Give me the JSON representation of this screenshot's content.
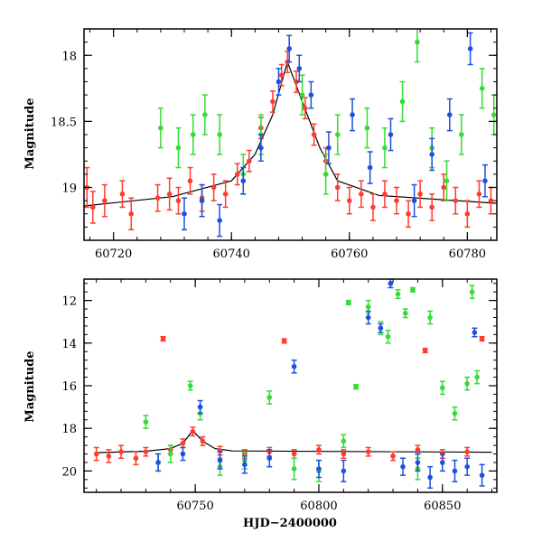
{
  "chart_data": [
    {
      "type": "scatter",
      "panel": "top",
      "xlabel": "",
      "ylabel": "Magnitude",
      "xlim": [
        60715,
        60785
      ],
      "ylim": [
        19.4,
        17.8
      ],
      "y_inverted": true,
      "xticks": [
        60720,
        60740,
        60760,
        60780
      ],
      "yticks": [
        18,
        18.5,
        19
      ],
      "colors": {
        "red": "#ff3b30",
        "green": "#33dd33",
        "blue": "#1f4fe0",
        "model": "#000000"
      },
      "model_curve": {
        "x": [
          60715,
          60730,
          60740,
          60744,
          60747,
          60749.5,
          60752,
          60755,
          60758,
          60765,
          60785
        ],
        "y": [
          19.14,
          19.07,
          18.95,
          18.75,
          18.45,
          18.05,
          18.35,
          18.7,
          18.95,
          19.06,
          19.12
        ]
      },
      "series": [
        {
          "color": "red",
          "points": [
            [
              60715.5,
              19.0,
              0.15
            ],
            [
              60716.5,
              19.15,
              0.12
            ],
            [
              60718.5,
              19.1,
              0.12
            ],
            [
              60721.5,
              19.05,
              0.1
            ],
            [
              60723.0,
              19.2,
              0.12
            ],
            [
              60727.5,
              19.08,
              0.1
            ],
            [
              60729.5,
              19.05,
              0.12
            ],
            [
              60731.0,
              19.1,
              0.1
            ],
            [
              60733.0,
              18.95,
              0.1
            ],
            [
              60735.0,
              19.08,
              0.1
            ],
            [
              60737.0,
              19.0,
              0.1
            ],
            [
              60739.0,
              19.05,
              0.1
            ],
            [
              60741.0,
              18.9,
              0.08
            ],
            [
              60743.0,
              18.8,
              0.08
            ],
            [
              60745.0,
              18.55,
              0.08
            ],
            [
              60747.0,
              18.35,
              0.08
            ],
            [
              60748.5,
              18.15,
              0.08
            ],
            [
              60749.5,
              18.05,
              0.08
            ],
            [
              60751.0,
              18.2,
              0.08
            ],
            [
              60752.5,
              18.4,
              0.08
            ],
            [
              60754.0,
              18.6,
              0.08
            ],
            [
              60756.0,
              18.8,
              0.1
            ],
            [
              60758.0,
              19.0,
              0.1
            ],
            [
              60760.0,
              19.1,
              0.1
            ],
            [
              60762.0,
              19.05,
              0.1
            ],
            [
              60764.0,
              19.15,
              0.1
            ],
            [
              60766.0,
              19.05,
              0.1
            ],
            [
              60768.0,
              19.1,
              0.1
            ],
            [
              60770.0,
              19.2,
              0.1
            ],
            [
              60772.0,
              19.05,
              0.1
            ],
            [
              60774.0,
              19.15,
              0.1
            ],
            [
              60776.0,
              19.0,
              0.1
            ],
            [
              60778.0,
              19.1,
              0.1
            ],
            [
              60780.0,
              19.2,
              0.1
            ],
            [
              60782.0,
              19.05,
              0.1
            ],
            [
              60784.0,
              19.1,
              0.1
            ]
          ]
        },
        {
          "color": "green",
          "points": [
            [
              60728.0,
              18.55,
              0.15
            ],
            [
              60731.0,
              18.7,
              0.15
            ],
            [
              60733.5,
              18.6,
              0.15
            ],
            [
              60735.5,
              18.45,
              0.15
            ],
            [
              60738.0,
              18.6,
              0.15
            ],
            [
              60742.0,
              18.9,
              0.15
            ],
            [
              60745.0,
              18.6,
              0.15
            ],
            [
              60752.0,
              18.3,
              0.15
            ],
            [
              60756.0,
              18.9,
              0.15
            ],
            [
              60758.0,
              18.6,
              0.15
            ],
            [
              60763.0,
              18.55,
              0.15
            ],
            [
              60766.0,
              18.7,
              0.15
            ],
            [
              60769.0,
              18.35,
              0.15
            ],
            [
              60771.5,
              17.9,
              0.15
            ],
            [
              60774.0,
              18.7,
              0.15
            ],
            [
              60776.5,
              18.95,
              0.15
            ],
            [
              60779.0,
              18.6,
              0.15
            ],
            [
              60782.5,
              18.25,
              0.15
            ],
            [
              60784.5,
              18.45,
              0.15
            ]
          ]
        },
        {
          "color": "blue",
          "points": [
            [
              60732.0,
              19.2,
              0.12
            ],
            [
              60735.0,
              19.1,
              0.12
            ],
            [
              60738.0,
              19.25,
              0.12
            ],
            [
              60742.0,
              18.95,
              0.1
            ],
            [
              60745.0,
              18.7,
              0.1
            ],
            [
              60748.0,
              18.2,
              0.1
            ],
            [
              60749.8,
              17.95,
              0.1
            ],
            [
              60751.5,
              18.1,
              0.1
            ],
            [
              60753.5,
              18.3,
              0.1
            ],
            [
              60756.5,
              18.7,
              0.12
            ],
            [
              60760.5,
              18.45,
              0.12
            ],
            [
              60763.5,
              18.85,
              0.12
            ],
            [
              60767.0,
              18.6,
              0.12
            ],
            [
              60771.0,
              19.1,
              0.12
            ],
            [
              60774.0,
              18.75,
              0.12
            ],
            [
              60777.0,
              18.45,
              0.12
            ],
            [
              60780.5,
              17.95,
              0.12
            ],
            [
              60783.0,
              18.95,
              0.12
            ]
          ]
        }
      ]
    },
    {
      "type": "scatter",
      "panel": "bottom",
      "xlabel": "HJD−2400000",
      "ylabel": "Magnitude",
      "xlim": [
        60705,
        60872
      ],
      "ylim": [
        21,
        11
      ],
      "y_inverted": true,
      "xticks": [
        60750,
        60800,
        60850
      ],
      "yticks": [
        12,
        14,
        16,
        18,
        20
      ],
      "colors": {
        "red": "#ff3b30",
        "green": "#33dd33",
        "blue": "#1f4fe0",
        "model": "#000000"
      },
      "model_curve": {
        "x": [
          60710,
          60730,
          60740,
          60745,
          60749,
          60753,
          60758,
          60765,
          60870
        ],
        "y": [
          19.14,
          19.07,
          18.95,
          18.7,
          18.1,
          18.6,
          18.95,
          19.06,
          19.12
        ]
      },
      "series": [
        {
          "color": "red",
          "points": [
            [
              60710,
              19.2,
              0.3
            ],
            [
              60715,
              19.3,
              0.3
            ],
            [
              60720,
              19.1,
              0.3
            ],
            [
              60726,
              19.4,
              0.3
            ],
            [
              60730,
              19.1,
              0.2
            ],
            [
              60737,
              13.8,
              0.1
            ],
            [
              60740,
              19.0,
              0.2
            ],
            [
              60745,
              18.7,
              0.2
            ],
            [
              60749,
              18.15,
              0.2
            ],
            [
              60753,
              18.6,
              0.2
            ],
            [
              60760,
              19.05,
              0.2
            ],
            [
              60770,
              19.2,
              0.2
            ],
            [
              60780,
              19.1,
              0.2
            ],
            [
              60786,
              13.9,
              0.1
            ],
            [
              60790,
              19.2,
              0.2
            ],
            [
              60800,
              19.0,
              0.2
            ],
            [
              60810,
              19.2,
              0.2
            ],
            [
              60820,
              19.1,
              0.2
            ],
            [
              60830,
              19.3,
              0.2
            ],
            [
              60840,
              19.0,
              0.2
            ],
            [
              60843,
              14.35,
              0.1
            ],
            [
              60850,
              19.2,
              0.2
            ],
            [
              60860,
              19.1,
              0.2
            ],
            [
              60866,
              13.8,
              0.1
            ]
          ]
        },
        {
          "color": "green",
          "points": [
            [
              60730,
              17.7,
              0.3
            ],
            [
              60735,
              19.6,
              0.4
            ],
            [
              60740,
              19.2,
              0.4
            ],
            [
              60748,
              16.0,
              0.2
            ],
            [
              60752,
              17.3,
              0.3
            ],
            [
              60760,
              19.8,
              0.4
            ],
            [
              60770,
              19.5,
              0.4
            ],
            [
              60780,
              16.55,
              0.3
            ],
            [
              60790,
              19.9,
              0.5
            ],
            [
              60800,
              20.0,
              0.5
            ],
            [
              60810,
              18.6,
              0.3
            ],
            [
              60812,
              12.1,
              0.1
            ],
            [
              60815,
              16.05,
              0.1
            ],
            [
              60820,
              12.3,
              0.3
            ],
            [
              60825,
              13.3,
              0.3
            ],
            [
              60828,
              13.7,
              0.3
            ],
            [
              60832,
              11.7,
              0.2
            ],
            [
              60835,
              12.6,
              0.2
            ],
            [
              60838,
              11.5,
              0.1
            ],
            [
              60840,
              19.9,
              0.5
            ],
            [
              60845,
              12.8,
              0.3
            ],
            [
              60850,
              16.1,
              0.3
            ],
            [
              60855,
              17.3,
              0.3
            ],
            [
              60860,
              15.9,
              0.3
            ],
            [
              60862,
              11.6,
              0.3
            ],
            [
              60864,
              15.6,
              0.3
            ]
          ]
        },
        {
          "color": "blue",
          "points": [
            [
              60735,
              19.6,
              0.4
            ],
            [
              60745,
              19.2,
              0.3
            ],
            [
              60752,
              17.0,
              0.3
            ],
            [
              60760,
              19.5,
              0.4
            ],
            [
              60770,
              19.7,
              0.4
            ],
            [
              60780,
              19.4,
              0.4
            ],
            [
              60790,
              15.1,
              0.3
            ],
            [
              60800,
              19.9,
              0.4
            ],
            [
              60810,
              20.0,
              0.5
            ],
            [
              60820,
              12.8,
              0.3
            ],
            [
              60825,
              13.3,
              0.2
            ],
            [
              60829,
              11.2,
              0.2
            ],
            [
              60834,
              19.8,
              0.4
            ],
            [
              60840,
              19.6,
              0.4
            ],
            [
              60845,
              20.3,
              0.5
            ],
            [
              60850,
              19.6,
              0.4
            ],
            [
              60855,
              20.0,
              0.5
            ],
            [
              60860,
              19.8,
              0.4
            ],
            [
              60863,
              13.5,
              0.2
            ],
            [
              60866,
              20.2,
              0.5
            ]
          ]
        }
      ]
    }
  ]
}
